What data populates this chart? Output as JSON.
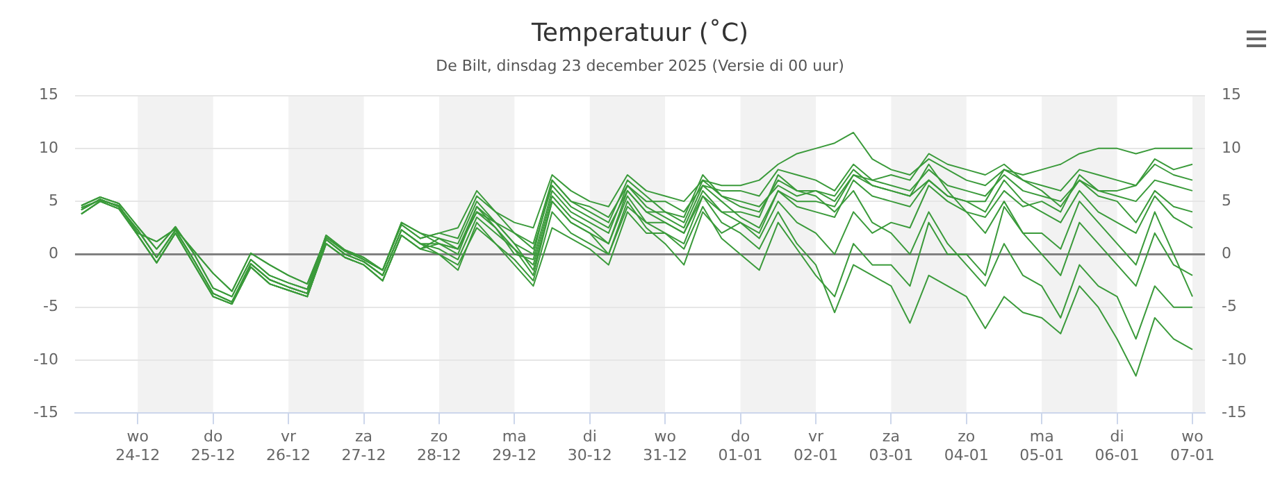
{
  "chart_data": {
    "type": "line",
    "title": "Temperatuur (˚C)",
    "subtitle": "De Bilt, dinsdag 23 december 2025 (Versie di 00 uur)",
    "x": [
      "2025-12-23T06:00",
      "2025-12-23T12:00",
      "2025-12-23T18:00",
      "2025-12-24T00:00",
      "2025-12-24T06:00",
      "2025-12-24T12:00",
      "2025-12-24T18:00",
      "2025-12-25T00:00",
      "2025-12-25T06:00",
      "2025-12-25T12:00",
      "2025-12-25T18:00",
      "2025-12-26T00:00",
      "2025-12-26T06:00",
      "2025-12-26T12:00",
      "2025-12-26T18:00",
      "2025-12-27T00:00",
      "2025-12-27T06:00",
      "2025-12-27T12:00",
      "2025-12-27T18:00",
      "2025-12-28T00:00",
      "2025-12-28T06:00",
      "2025-12-28T12:00",
      "2025-12-28T18:00",
      "2025-12-29T00:00",
      "2025-12-29T06:00",
      "2025-12-29T12:00",
      "2025-12-29T18:00",
      "2025-12-30T00:00",
      "2025-12-30T06:00",
      "2025-12-30T12:00",
      "2025-12-30T18:00",
      "2025-12-31T00:00",
      "2025-12-31T06:00",
      "2025-12-31T12:00",
      "2025-12-31T18:00",
      "2026-01-01T00:00",
      "2026-01-01T06:00",
      "2026-01-01T12:00",
      "2026-01-01T18:00",
      "2026-01-02T00:00",
      "2026-01-02T06:00",
      "2026-01-02T12:00",
      "2026-01-02T18:00",
      "2026-01-03T00:00",
      "2026-01-03T06:00",
      "2026-01-03T12:00",
      "2026-01-03T18:00",
      "2026-01-04T00:00",
      "2026-01-04T06:00",
      "2026-01-04T12:00",
      "2026-01-04T18:00",
      "2026-01-05T00:00",
      "2026-01-05T06:00",
      "2026-01-05T12:00",
      "2026-01-05T18:00",
      "2026-01-06T00:00",
      "2026-01-06T06:00",
      "2026-01-06T12:00",
      "2026-01-06T18:00",
      "2026-01-07T00:00"
    ],
    "series": [
      {
        "color": "#3a9a3a",
        "values": [
          4.2,
          5.2,
          4.5,
          2.3,
          -0.3,
          2.3,
          -0.6,
          -3.7,
          -4.5,
          -0.9,
          -2.4,
          -3.1,
          -3.7,
          1.4,
          0,
          -0.7,
          -2.0,
          2.3,
          1.0,
          1,
          0.5,
          4,
          2.5,
          0,
          -0.5,
          6,
          4,
          3,
          2,
          6.5,
          4.5,
          3.5,
          2.5,
          6.5,
          5,
          3.5,
          2.5,
          6,
          4.5,
          4,
          3.5,
          7,
          5.5,
          5,
          4.5,
          7,
          5.5,
          5,
          4,
          7,
          5,
          4,
          3,
          6,
          4,
          3,
          2,
          5.5,
          3.5,
          2.5
        ]
      },
      {
        "color": "#3a9a3a",
        "values": [
          4.6,
          5.4,
          4.8,
          2.6,
          0.5,
          2.6,
          0,
          -3.2,
          -4.0,
          -0.5,
          -2.0,
          -2.7,
          -3.3,
          1.8,
          0.4,
          -0.3,
          -1.5,
          2.8,
          1.5,
          2,
          2.5,
          6,
          4,
          3,
          2.5,
          7.5,
          6,
          5,
          4.5,
          7.5,
          6,
          5.5,
          5,
          7,
          6.5,
          6.5,
          7,
          8.5,
          9.5,
          10,
          10.5,
          11.5,
          9,
          8,
          7.5,
          9,
          8,
          7,
          6.5,
          8,
          7.5,
          8,
          8.5,
          9.5,
          10,
          10,
          9.5,
          10,
          10,
          10
        ]
      },
      {
        "color": "#3a9a3a",
        "values": [
          3.8,
          5.0,
          4.3,
          1.8,
          -0.8,
          2.0,
          -1.0,
          -4.0,
          -4.7,
          -1.2,
          -2.8,
          -3.4,
          -4.0,
          1.0,
          -0.3,
          -1.0,
          -2.5,
          1.8,
          0.5,
          0,
          -1.5,
          3,
          1,
          -1,
          -3,
          2.5,
          1.5,
          0.5,
          -1,
          4,
          2,
          2,
          1,
          5.5,
          3,
          2,
          0.5,
          4,
          1,
          -1,
          -5.5,
          -1,
          -2,
          -3,
          -6.5,
          -2,
          -3,
          -4,
          -7,
          -4,
          -5.5,
          -6,
          -7.5,
          -3,
          -5,
          -8,
          -11.5,
          -6,
          -8,
          -9
        ]
      },
      {
        "color": "#3a9a3a",
        "values": [
          4.4,
          5.1,
          4.6,
          2.0,
          1.2,
          2.4,
          0.3,
          -1.8,
          -3.5,
          0.1,
          -1.0,
          -2.0,
          -2.8,
          1.6,
          0.3,
          -0.5,
          -1.5,
          3.0,
          2.0,
          1.5,
          1,
          5,
          3,
          1,
          0,
          7,
          5,
          4,
          3,
          7,
          5.5,
          4,
          3.5,
          7.5,
          5.5,
          4.5,
          4,
          7,
          6,
          6,
          5.5,
          8,
          6.5,
          6,
          5.5,
          8.5,
          6,
          4,
          2,
          5,
          2,
          0,
          -2,
          3,
          1,
          -1,
          -3,
          2,
          -1,
          -2
        ]
      },
      {
        "color": "#3a9a3a",
        "values": [
          4.2,
          5.2,
          4.5,
          2.3,
          -0.3,
          2.3,
          -0.6,
          -3.7,
          -4.5,
          -0.9,
          -2.4,
          -3.1,
          -3.7,
          1.4,
          0,
          -0.7,
          -2.0,
          2.3,
          1.0,
          0.5,
          -0.5,
          3.5,
          2,
          0.5,
          -2,
          5,
          3,
          2,
          0,
          5,
          2.5,
          1,
          -1,
          4,
          2,
          3,
          2,
          6,
          5,
          5,
          4.5,
          7.5,
          7,
          6.5,
          6,
          8,
          6.5,
          6,
          5.5,
          7.5,
          6,
          5.5,
          5,
          7,
          6,
          6,
          6.5,
          8.5,
          7.5,
          7
        ]
      },
      {
        "color": "#3a9a3a",
        "values": [
          3.8,
          5.0,
          4.3,
          1.8,
          -0.8,
          2.0,
          -1.0,
          -4.0,
          -4.7,
          -1.2,
          -2.8,
          -3.4,
          -4.0,
          1.0,
          -0.3,
          -1.0,
          -2.5,
          1.8,
          0.5,
          1,
          0,
          4.5,
          2.5,
          0.5,
          -1,
          5.5,
          3.5,
          2.5,
          1,
          5.5,
          3,
          2,
          0.5,
          4.5,
          1.5,
          0,
          -1.5,
          3,
          0.5,
          -2,
          -4,
          1,
          -1,
          -1,
          -3,
          3,
          0,
          0,
          -2,
          4.5,
          2,
          2,
          0.5,
          5,
          3,
          1,
          -1,
          4,
          0,
          -4
        ]
      },
      {
        "color": "#3a9a3a",
        "values": [
          4.6,
          5.4,
          4.8,
          2.6,
          0.5,
          2.6,
          0,
          -3.2,
          -4.0,
          -0.5,
          -2.0,
          -2.7,
          -3.3,
          1.8,
          0.4,
          -0.3,
          -1.5,
          2.8,
          1.5,
          2,
          1.5,
          5.5,
          4,
          2,
          1,
          7,
          5,
          4.5,
          3.5,
          6.5,
          5,
          5,
          4,
          6.5,
          6,
          6,
          5.5,
          8,
          7.5,
          7,
          6,
          8.5,
          7,
          7.5,
          7,
          9.5,
          8.5,
          8,
          7.5,
          8.5,
          7,
          6,
          4.5,
          7,
          5.5,
          5,
          3,
          6,
          4.5,
          4
        ]
      },
      {
        "color": "#3a9a3a",
        "values": [
          4.2,
          5.2,
          4.5,
          2.3,
          -0.3,
          2.3,
          -0.6,
          -3.7,
          -4.5,
          -0.9,
          -2.4,
          -3.1,
          -3.7,
          1.4,
          0,
          -0.7,
          -2.0,
          2.3,
          1.0,
          0,
          -1,
          2.5,
          1,
          -0.5,
          -2.5,
          4,
          2,
          1,
          0,
          4.5,
          3,
          3,
          2,
          6,
          4,
          4,
          3.5,
          7.5,
          6,
          5.5,
          4,
          6,
          3,
          2,
          0,
          4,
          1,
          -1,
          -3,
          1,
          -2,
          -3,
          -6,
          -1,
          -3,
          -4,
          -8,
          -3,
          -5,
          -5
        ]
      },
      {
        "color": "#3a9a3a",
        "values": [
          4.4,
          5.1,
          4.6,
          2.0,
          1.2,
          2.4,
          0.3,
          -1.8,
          -3.5,
          0.1,
          -1.0,
          -2.0,
          -2.8,
          1.6,
          0.3,
          -0.5,
          -1.5,
          3.0,
          2.0,
          1,
          0.5,
          4,
          3,
          2,
          0.5,
          6.5,
          4.5,
          3.5,
          2.5,
          6,
          4,
          4,
          3,
          7,
          5.5,
          5,
          4.5,
          6.5,
          5.5,
          6,
          5,
          7.5,
          6.5,
          6,
          5.5,
          7,
          5.5,
          5,
          5,
          8,
          7,
          6.5,
          6,
          8,
          7.5,
          7,
          6.5,
          9,
          8,
          8.5
        ]
      },
      {
        "color": "#3a9a3a",
        "values": [
          3.8,
          5.0,
          4.3,
          1.8,
          -0.8,
          2.0,
          -1.0,
          -4.0,
          -4.7,
          -1.2,
          -2.8,
          -3.4,
          -4.0,
          1.0,
          -0.3,
          -1.0,
          -2.5,
          1.8,
          0.5,
          1.5,
          0.5,
          4.5,
          3,
          1,
          -1.5,
          5,
          3,
          2,
          1,
          6,
          4,
          3,
          2,
          5.5,
          4,
          3,
          1.5,
          5,
          3,
          2,
          0,
          4,
          2,
          3,
          2.5,
          6.5,
          5,
          4,
          3.5,
          6,
          4.5,
          5,
          4,
          7.5,
          6,
          5.5,
          5,
          7,
          6.5,
          6
        ]
      }
    ],
    "xlim": [
      "2025-12-23T04:00",
      "2026-01-07T04:00"
    ],
    "xticks": [
      {
        "value": "2025-12-24",
        "label": "wo 24-12"
      },
      {
        "value": "2025-12-25",
        "label": "do 25-12"
      },
      {
        "value": "2025-12-26",
        "label": "vr 26-12"
      },
      {
        "value": "2025-12-27",
        "label": "za 27-12"
      },
      {
        "value": "2025-12-28",
        "label": "zo 28-12"
      },
      {
        "value": "2025-12-29",
        "label": "ma 29-12"
      },
      {
        "value": "2025-12-30",
        "label": "di 30-12"
      },
      {
        "value": "2025-12-31",
        "label": "wo 31-12"
      },
      {
        "value": "2026-01-01",
        "label": "do 01-01"
      },
      {
        "value": "2026-01-02",
        "label": "vr 02-01"
      },
      {
        "value": "2026-01-03",
        "label": "za 03-01"
      },
      {
        "value": "2026-01-04",
        "label": "zo 04-01"
      },
      {
        "value": "2026-01-05",
        "label": "ma 05-01"
      },
      {
        "value": "2026-01-06",
        "label": "di 06-01"
      },
      {
        "value": "2026-01-07",
        "label": "wo 07-01"
      }
    ],
    "ylim": [
      -15,
      15
    ],
    "yticks": [
      -15,
      -10,
      -5,
      0,
      5,
      10,
      15
    ],
    "y2lim": [
      -15,
      15
    ],
    "y2ticks": [
      -15,
      -10,
      -5,
      0,
      5,
      10,
      15
    ],
    "bands": [
      {
        "axis": "x",
        "from": "2025-12-24",
        "to": "2025-12-25",
        "color": "#f2f2f2"
      },
      {
        "axis": "x",
        "from": "2025-12-26",
        "to": "2025-12-27",
        "color": "#f2f2f2"
      },
      {
        "axis": "x",
        "from": "2025-12-28",
        "to": "2025-12-29",
        "color": "#f2f2f2"
      },
      {
        "axis": "x",
        "from": "2025-12-30",
        "to": "2025-12-31",
        "color": "#f2f2f2"
      },
      {
        "axis": "x",
        "from": "2026-01-01",
        "to": "2026-01-02",
        "color": "#f2f2f2"
      },
      {
        "axis": "x",
        "from": "2026-01-03",
        "to": "2026-01-04",
        "color": "#f2f2f2"
      },
      {
        "axis": "x",
        "from": "2026-01-05",
        "to": "2026-01-06",
        "color": "#f2f2f2"
      },
      {
        "axis": "x",
        "from": "2026-01-07",
        "to": "2026-01-07T04:00",
        "color": "#f2f2f2"
      }
    ],
    "ref_lines": [
      {
        "axis": "y",
        "value": 0,
        "color": "#808080"
      }
    ],
    "grid": "y",
    "marker": "none",
    "line_style": "solid"
  }
}
